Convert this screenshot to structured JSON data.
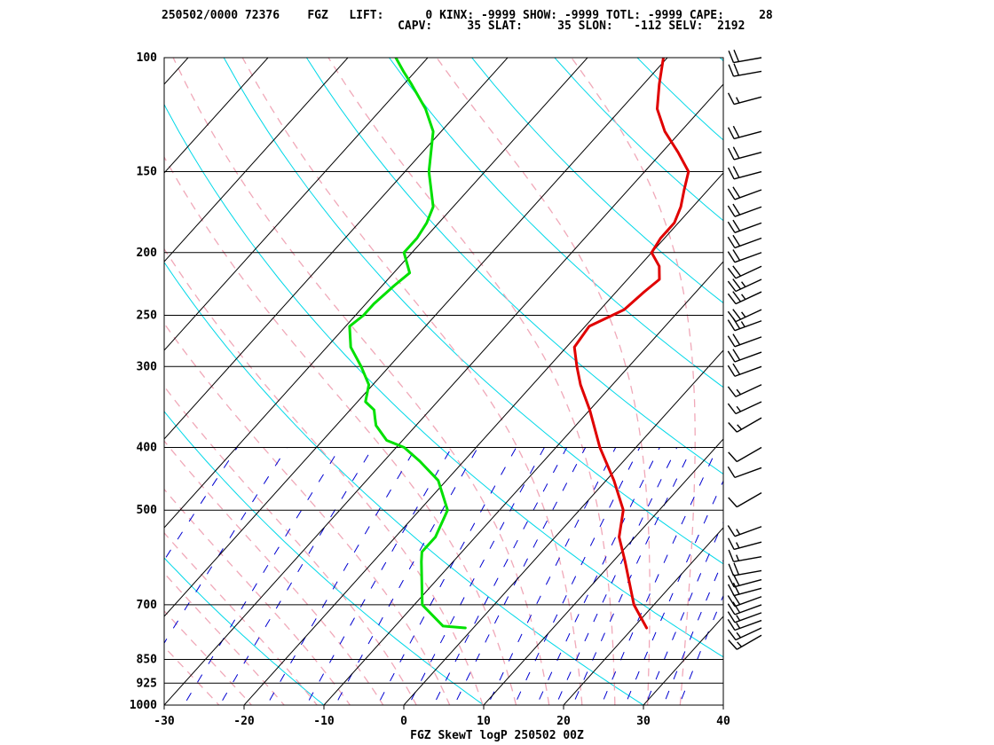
{
  "header": {
    "line1": "250502/0000 72376    FGZ   LIFT:      0 KINX: -9999 SHOW: -9999 TOTL: -9999 CAPE:     28",
    "line2": "                                  CAPV:     35 SLAT:     35 SLON:   -112 SELV:  2192"
  },
  "footer": "FGZ SkewT logP 250502 00Z",
  "colors": {
    "temperature": "#e00000",
    "dewpoint": "#00e000",
    "isotherm": "#000000",
    "dry_adiabat": "#00d8e8",
    "moist_adiabat": "#f0a8b8",
    "mixing_ratio": "#0000d0",
    "isobar": "#000000",
    "wind_barb": "#000000"
  },
  "chart_data": {
    "type": "line",
    "title": "FGZ SkewT logP 250502 00Z",
    "xlabel": "",
    "ylabel": "",
    "x_range": [
      -30,
      40
    ],
    "p_range": [
      1000,
      100
    ],
    "log_pressure": true,
    "grid": true,
    "pressure_ticks": [
      100,
      150,
      200,
      250,
      300,
      400,
      500,
      700,
      850,
      925,
      1000
    ],
    "temperature_ticks": [
      -30,
      -20,
      -10,
      0,
      10,
      20,
      30,
      40
    ],
    "series": [
      {
        "key": "temperature",
        "points": [
          [
            760,
            21.7
          ],
          [
            700,
            17.5
          ],
          [
            600,
            11.5
          ],
          [
            550,
            8.0
          ],
          [
            500,
            5.5
          ],
          [
            450,
            1.0
          ],
          [
            400,
            -4.5
          ],
          [
            350,
            -10.0
          ],
          [
            320,
            -14.0
          ],
          [
            300,
            -16.5
          ],
          [
            280,
            -19.0
          ],
          [
            260,
            -19.5
          ],
          [
            245,
            -17.0
          ],
          [
            230,
            -16.5
          ],
          [
            220,
            -16.0
          ],
          [
            210,
            -17.5
          ],
          [
            200,
            -20.0
          ],
          [
            190,
            -20.5
          ],
          [
            180,
            -20.5
          ],
          [
            170,
            -21.5
          ],
          [
            160,
            -23.0
          ],
          [
            150,
            -24.5
          ],
          [
            140,
            -28.0
          ],
          [
            130,
            -32.0
          ],
          [
            120,
            -35.5
          ],
          [
            110,
            -38.0
          ],
          [
            100,
            -40.5
          ]
        ]
      },
      {
        "key": "dewpoint",
        "points": [
          [
            760,
            -1.0
          ],
          [
            755,
            -4.0
          ],
          [
            700,
            -9.0
          ],
          [
            600,
            -14.0
          ],
          [
            580,
            -15.0
          ],
          [
            550,
            -15.0
          ],
          [
            500,
            -16.5
          ],
          [
            450,
            -21.0
          ],
          [
            420,
            -25.5
          ],
          [
            400,
            -29.0
          ],
          [
            390,
            -32.0
          ],
          [
            370,
            -35.0
          ],
          [
            360,
            -36.0
          ],
          [
            350,
            -37.0
          ],
          [
            340,
            -39.0
          ],
          [
            320,
            -40.5
          ],
          [
            300,
            -43.5
          ],
          [
            280,
            -47.0
          ],
          [
            260,
            -49.5
          ],
          [
            250,
            -49.0
          ],
          [
            240,
            -49.0
          ],
          [
            225,
            -48.5
          ],
          [
            215,
            -48.0
          ],
          [
            200,
            -51.0
          ],
          [
            190,
            -51.0
          ],
          [
            180,
            -51.5
          ],
          [
            170,
            -52.5
          ],
          [
            150,
            -57.0
          ],
          [
            130,
            -61.0
          ],
          [
            120,
            -64.5
          ],
          [
            110,
            -69.0
          ],
          [
            105,
            -71.5
          ],
          [
            100,
            -74.0
          ]
        ]
      }
    ],
    "winds": [
      {
        "p": 780,
        "dir": 240,
        "spd": 15
      },
      {
        "p": 760,
        "dir": 245,
        "spd": 15
      },
      {
        "p": 740,
        "dir": 250,
        "spd": 15
      },
      {
        "p": 720,
        "dir": 250,
        "spd": 15
      },
      {
        "p": 700,
        "dir": 250,
        "spd": 20
      },
      {
        "p": 680,
        "dir": 250,
        "spd": 20
      },
      {
        "p": 660,
        "dir": 255,
        "spd": 20
      },
      {
        "p": 640,
        "dir": 255,
        "spd": 20
      },
      {
        "p": 620,
        "dir": 260,
        "spd": 20
      },
      {
        "p": 590,
        "dir": 260,
        "spd": 15
      },
      {
        "p": 560,
        "dir": 255,
        "spd": 15
      },
      {
        "p": 530,
        "dir": 250,
        "spd": 15
      },
      {
        "p": 470,
        "dir": 240,
        "spd": 10
      },
      {
        "p": 430,
        "dir": 250,
        "spd": 10
      },
      {
        "p": 400,
        "dir": 240,
        "spd": 10
      },
      {
        "p": 360,
        "dir": 240,
        "spd": 15
      },
      {
        "p": 340,
        "dir": 245,
        "spd": 15
      },
      {
        "p": 320,
        "dir": 245,
        "spd": 15
      },
      {
        "p": 300,
        "dir": 250,
        "spd": 20
      },
      {
        "p": 285,
        "dir": 250,
        "spd": 20
      },
      {
        "p": 270,
        "dir": 250,
        "spd": 20
      },
      {
        "p": 255,
        "dir": 250,
        "spd": 25
      },
      {
        "p": 245,
        "dir": 245,
        "spd": 25
      },
      {
        "p": 230,
        "dir": 245,
        "spd": 25
      },
      {
        "p": 220,
        "dir": 245,
        "spd": 25
      },
      {
        "p": 210,
        "dir": 245,
        "spd": 20
      },
      {
        "p": 200,
        "dir": 250,
        "spd": 20
      },
      {
        "p": 190,
        "dir": 250,
        "spd": 20
      },
      {
        "p": 180,
        "dir": 250,
        "spd": 20
      },
      {
        "p": 170,
        "dir": 250,
        "spd": 20
      },
      {
        "p": 160,
        "dir": 250,
        "spd": 20
      },
      {
        "p": 150,
        "dir": 255,
        "spd": 20
      },
      {
        "p": 140,
        "dir": 255,
        "spd": 20
      },
      {
        "p": 130,
        "dir": 255,
        "spd": 20
      },
      {
        "p": 115,
        "dir": 255,
        "spd": 15
      },
      {
        "p": 105,
        "dir": 260,
        "spd": 20
      },
      {
        "p": 100,
        "dir": 260,
        "spd": 20
      }
    ]
  }
}
